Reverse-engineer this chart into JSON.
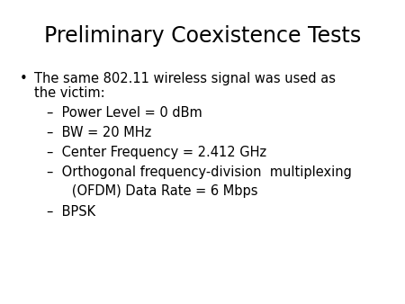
{
  "title": "Preliminary Coexistence Tests",
  "title_fontsize": 17,
  "background_color": "#ffffff",
  "text_color": "#000000",
  "body_fontsize": 10.5,
  "sub_fontsize": 10.5,
  "bullet_char": "•",
  "bullet_text_line1": "The same 802.11 wireless signal was used as",
  "bullet_text_line2": "the victim:",
  "sub_bullets": [
    "–  Power Level = 0 dBm",
    "–  BW = 20 MHz",
    "–  Center Frequency = 2.412 GHz",
    "–  Orthogonal frequency-division  multiplexing\n      (OFDM) Data Rate = 6 Mbps",
    "–  BPSK"
  ]
}
